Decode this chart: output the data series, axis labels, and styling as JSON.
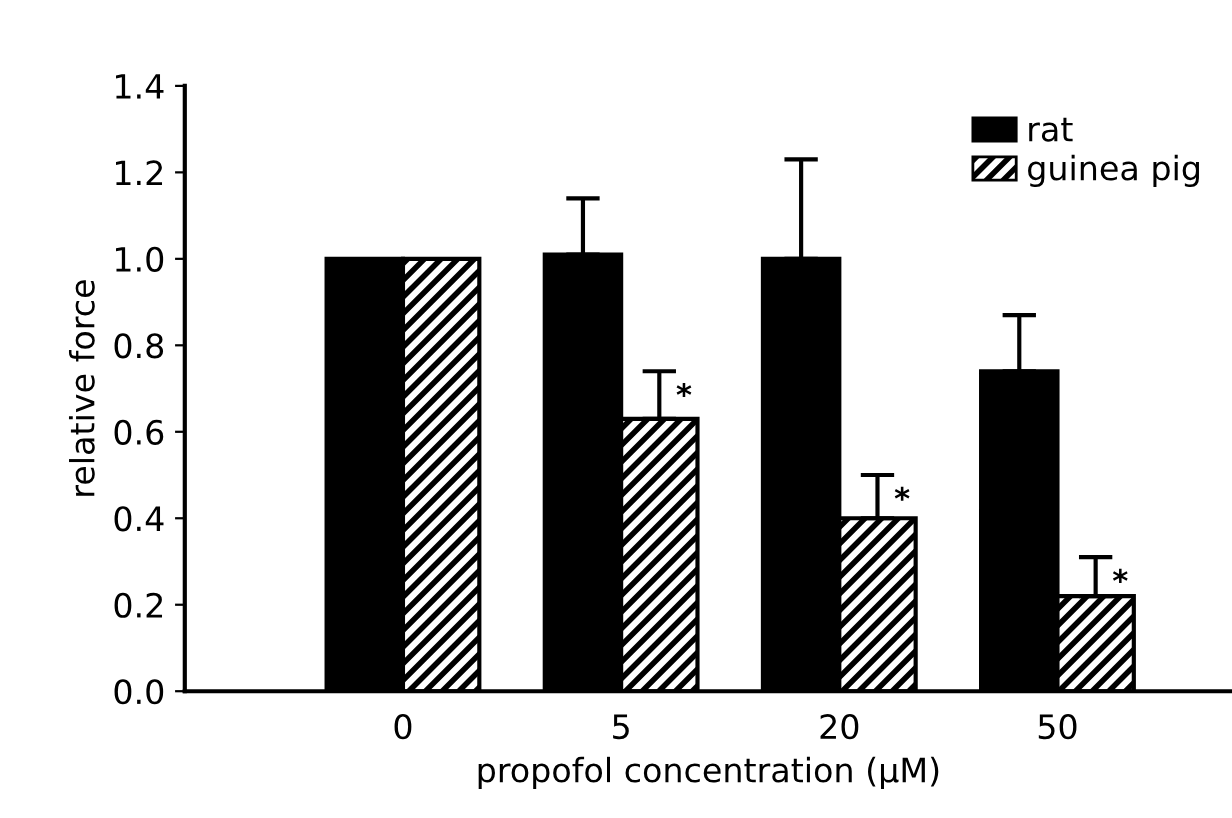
{
  "chart_data": {
    "type": "bar",
    "xlabel": "propofol concentration (μM)",
    "ylabel": "relative force",
    "categories": [
      "0",
      "5",
      "20",
      "50"
    ],
    "series": [
      {
        "name": "rat",
        "color": "#000000",
        "values": [
          1.0,
          1.01,
          1.0,
          0.74
        ],
        "errors": [
          null,
          [
            1.01,
            1.14
          ],
          [
            1.0,
            1.23
          ],
          [
            0.74,
            0.87
          ]
        ]
      },
      {
        "name": "guinea pig",
        "color": "#000000",
        "values": [
          1.0,
          0.63,
          0.4,
          0.22
        ],
        "errors": [
          null,
          [
            0.63,
            0.74
          ],
          [
            0.4,
            0.5
          ],
          [
            0.22,
            0.31
          ]
        ]
      }
    ],
    "annotations": [
      {
        "text": "*",
        "x": "5",
        "y": 0.74
      },
      {
        "text": "*",
        "x": "20",
        "y": 0.5
      },
      {
        "text": "*",
        "x": "50",
        "y": 0.31
      }
    ],
    "ylim": [
      0,
      1.4
    ],
    "yticks": [
      {
        "value": 0,
        "label": "0.0"
      },
      {
        "value": 0.2,
        "label": "0.2"
      },
      {
        "value": 0.4,
        "label": "0.4"
      },
      {
        "value": 0.6,
        "label": "0.6"
      },
      {
        "value": 0.8,
        "label": "0.8"
      },
      {
        "value": 1.0,
        "label": "1.0"
      },
      {
        "value": 1.2,
        "label": "1.2"
      },
      {
        "value": 1.4,
        "label": "1.4"
      }
    ],
    "grid": false,
    "legend": "top right"
  }
}
